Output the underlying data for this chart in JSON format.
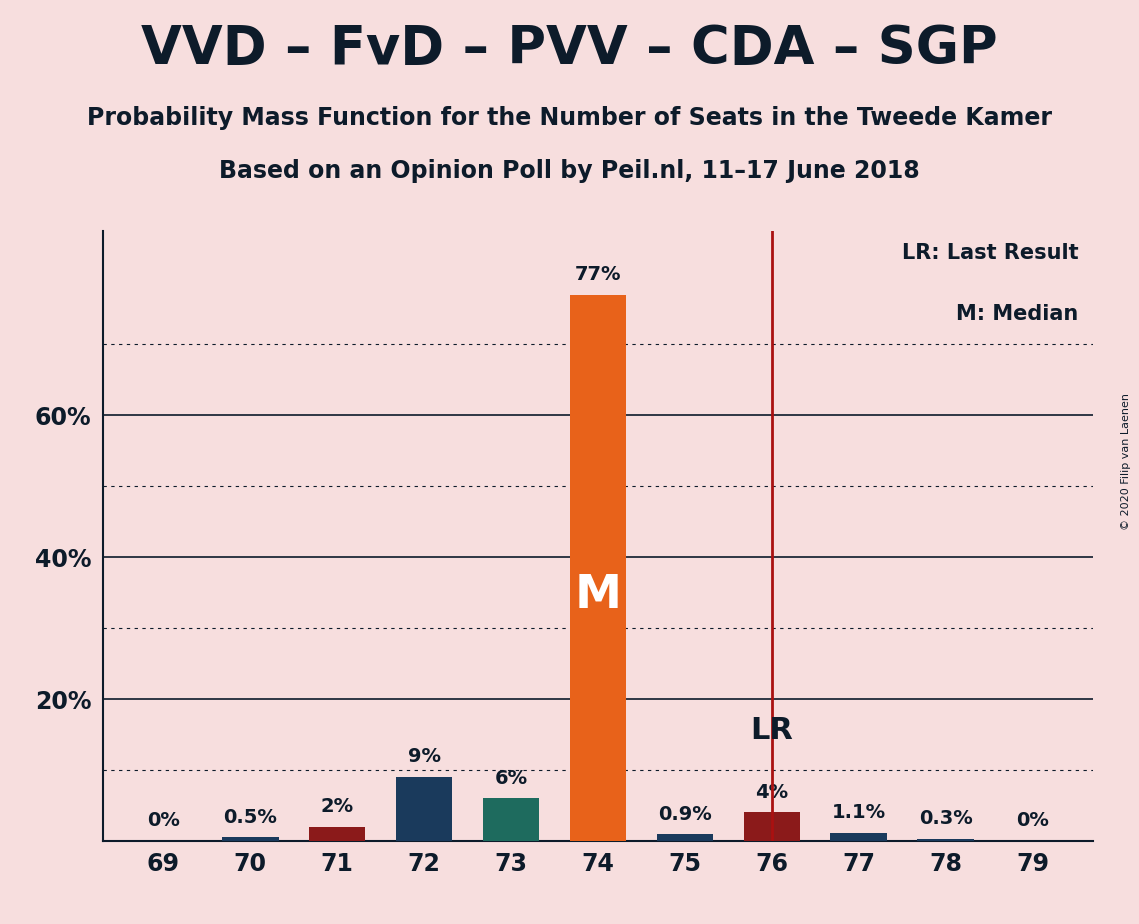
{
  "title": "VVD – FvD – PVV – CDA – SGP",
  "subtitle1": "Probability Mass Function for the Number of Seats in the Tweede Kamer",
  "subtitle2": "Based on an Opinion Poll by Peil.nl, 11–17 June 2018",
  "copyright": "© 2020 Filip van Laenen",
  "categories": [
    69,
    70,
    71,
    72,
    73,
    74,
    75,
    76,
    77,
    78,
    79
  ],
  "values": [
    0.0,
    0.5,
    2.0,
    9.0,
    6.0,
    77.0,
    0.9,
    4.0,
    1.1,
    0.3,
    0.0
  ],
  "labels": [
    "0%",
    "0.5%",
    "2%",
    "9%",
    "6%",
    "77%",
    "0.9%",
    "4%",
    "1.1%",
    "0.3%",
    "0%"
  ],
  "bar_colors": [
    "#1a3a5c",
    "#1a3a5c",
    "#8b1a1a",
    "#1a3a5c",
    "#1e6b5e",
    "#e8621a",
    "#1a3a5c",
    "#8b1a1a",
    "#1a3a5c",
    "#1a3a5c",
    "#1a3a5c"
  ],
  "lr_x": 76,
  "median_x": 74,
  "background_color": "#f7dede",
  "text_color": "#0d1b2a",
  "gridline_solid": [
    20,
    40,
    60
  ],
  "gridline_dotted": [
    10,
    30,
    50,
    70
  ],
  "yticks": [
    0,
    20,
    40,
    60
  ],
  "ylim": [
    0,
    86
  ],
  "xlim": [
    68.3,
    79.7
  ]
}
